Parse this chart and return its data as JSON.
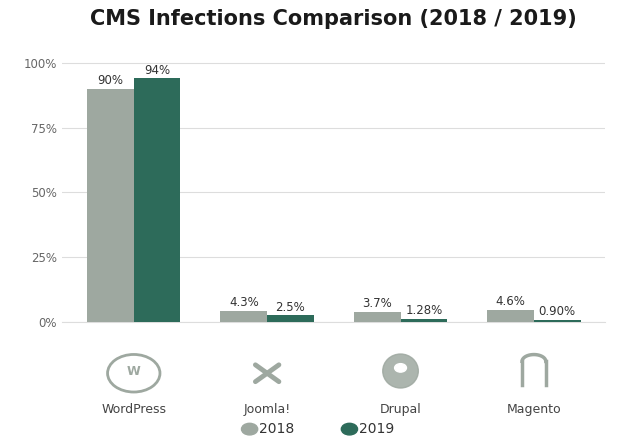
{
  "title": "CMS Infections Comparison (2018 / 2019)",
  "categories": [
    "WordPress",
    "Joomla!",
    "Drupal",
    "Magento"
  ],
  "values_2018": [
    90,
    4.3,
    3.7,
    4.6
  ],
  "values_2019": [
    94,
    2.5,
    1.28,
    0.9
  ],
  "labels_2018": [
    "90%",
    "4.3%",
    "3.7%",
    "4.6%"
  ],
  "labels_2019": [
    "94%",
    "2.5%",
    "1.28%",
    "0.90%"
  ],
  "color_2018": "#9EA8A0",
  "color_2019": "#2D6B5A",
  "bar_width": 0.35,
  "ylim": [
    0,
    107
  ],
  "yticks": [
    0,
    25,
    50,
    75,
    100
  ],
  "yticklabels": [
    "0%",
    "25%",
    "50%",
    "75%",
    "100%"
  ],
  "background_color": "#FFFFFF",
  "title_fontsize": 15,
  "legend_labels": [
    "2018",
    "2019"
  ],
  "grid_color": "#DDDDDD",
  "icon_unicode": [
    "ⓦ",
    "ⓙ",
    "ⓓ",
    "ⓜ"
  ],
  "icon_color": "#9EA8A0"
}
